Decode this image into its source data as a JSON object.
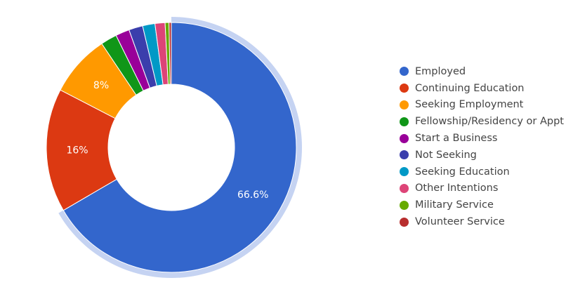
{
  "chart_data": {
    "type": "pie",
    "title": "",
    "legend_position": "right",
    "categories": [
      "Employed",
      "Continuing Education",
      "Seeking Employment",
      "Fellowship/Residency or Appt",
      "Start a Business",
      "Not Seeking",
      "Seeking Education",
      "Other Intentions",
      "Military Service",
      "Volunteer Service"
    ],
    "values": [
      66.6,
      16,
      8,
      2.1,
      1.8,
      1.8,
      1.6,
      1.3,
      0.5,
      0.3
    ],
    "data_labels": [
      "66.6%",
      "16%",
      "8%",
      "",
      "",
      "",
      "",
      "",
      "",
      ""
    ],
    "colors": [
      "#3366cc",
      "#dc3912",
      "#ff9900",
      "#109618",
      "#990099",
      "#3b3eac",
      "#0099c6",
      "#dd4477",
      "#66aa00",
      "#b82e2e"
    ],
    "highlighted_slice": "Employed",
    "highlight_color": "#c5d3f2"
  }
}
